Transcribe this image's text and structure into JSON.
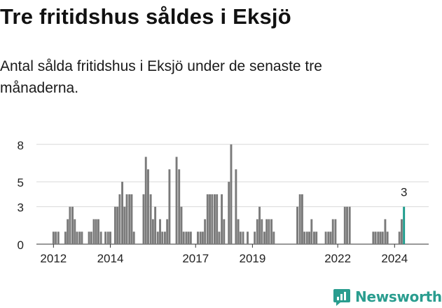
{
  "title": "Tre fritidshus såldes i Eksjö",
  "subtitle": "Antal sålda fritidshus i Eksjö under de senaste tre månaderna.",
  "brand": {
    "name": "Newsworthy",
    "color": "#2a9d8f",
    "icon": "newsworthy-logo-icon"
  },
  "colors": {
    "bar": "#7a7a7a",
    "highlight": "#1a9a8a",
    "grid": "#d9d9d9"
  },
  "chart_data": {
    "type": "bar",
    "title": "Tre fritidshus såldes i Eksjö",
    "xlabel": "",
    "ylabel": "",
    "ylim": [
      0,
      9
    ],
    "yticks": [
      0,
      3,
      5,
      8
    ],
    "xlim": [
      2011.4,
      2025.2
    ],
    "xticks": [
      2012,
      2014,
      2017,
      2019,
      2022,
      2024
    ],
    "grid": true,
    "legend": "none",
    "x": [
      2012.0,
      2012.08,
      2012.17,
      2012.42,
      2012.5,
      2012.58,
      2012.67,
      2012.75,
      2012.83,
      2012.92,
      2013.0,
      2013.25,
      2013.33,
      2013.42,
      2013.5,
      2013.58,
      2013.67,
      2013.83,
      2013.92,
      2014.0,
      2014.17,
      2014.25,
      2014.33,
      2014.42,
      2014.5,
      2014.58,
      2014.67,
      2014.75,
      2014.83,
      2015.17,
      2015.25,
      2015.33,
      2015.42,
      2015.5,
      2015.58,
      2015.67,
      2015.75,
      2015.83,
      2015.92,
      2016.0,
      2016.08,
      2016.33,
      2016.42,
      2016.5,
      2016.58,
      2016.67,
      2016.75,
      2016.83,
      2017.08,
      2017.17,
      2017.25,
      2017.33,
      2017.42,
      2017.5,
      2017.58,
      2017.67,
      2017.75,
      2017.83,
      2017.92,
      2018.0,
      2018.17,
      2018.25,
      2018.42,
      2018.5,
      2018.58,
      2018.67,
      2018.83,
      2019.08,
      2019.17,
      2019.25,
      2019.33,
      2019.42,
      2019.5,
      2019.58,
      2019.67,
      2019.75,
      2020.58,
      2020.67,
      2020.75,
      2020.83,
      2020.92,
      2021.0,
      2021.08,
      2021.17,
      2021.25,
      2021.58,
      2021.67,
      2021.75,
      2021.83,
      2021.92,
      2022.25,
      2022.33,
      2022.42,
      2023.25,
      2023.33,
      2023.42,
      2023.5,
      2023.58,
      2023.67,
      2023.75,
      2024.17,
      2024.25,
      2024.33
    ],
    "values": [
      1,
      1,
      1,
      1,
      2,
      3,
      3,
      2,
      1,
      1,
      1,
      1,
      1,
      2,
      2,
      2,
      1,
      1,
      1,
      1,
      3,
      3,
      4,
      5,
      3,
      4,
      4,
      4,
      1,
      4,
      7,
      6,
      4,
      2,
      3,
      1,
      2,
      1,
      1,
      2,
      6,
      7,
      6,
      3,
      1,
      1,
      1,
      1,
      1,
      1,
      1,
      2,
      4,
      4,
      4,
      4,
      4,
      1,
      4,
      2,
      5,
      8,
      6,
      2,
      1,
      1,
      1,
      1,
      2,
      3,
      2,
      1,
      2,
      2,
      2,
      1,
      3,
      4,
      4,
      1,
      1,
      1,
      2,
      1,
      1,
      1,
      1,
      1,
      2,
      2,
      3,
      3,
      3,
      1,
      1,
      1,
      1,
      1,
      2,
      1,
      1,
      2,
      3
    ],
    "highlight_index": 102,
    "highlight_label": "3"
  }
}
